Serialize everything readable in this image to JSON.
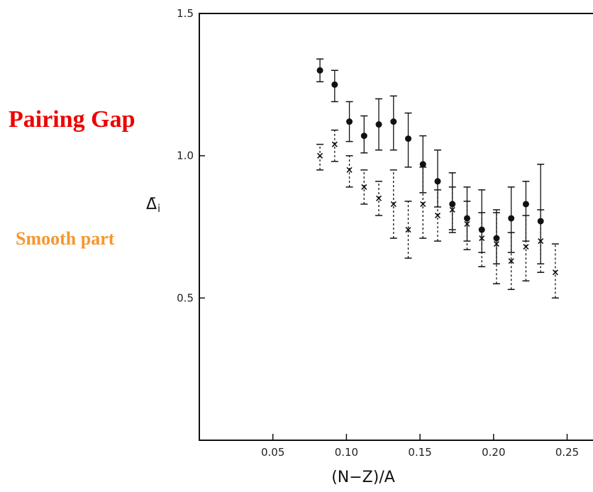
{
  "annotations": {
    "pairing_gap": {
      "text": "Pairing Gap",
      "color": "#ee0000"
    },
    "smooth_part": {
      "text": "Smooth part",
      "color": "#f7962d"
    }
  },
  "chart_data": {
    "type": "scatter",
    "xlabel": "(N−Z)/A",
    "ylabel": "Δ̄",
    "ylabel_subscript": "i",
    "xlim": [
      0.0,
      0.27
    ],
    "ylim": [
      0.0,
      1.5
    ],
    "x_ticks": [
      {
        "value": 0.05,
        "label": "0.05"
      },
      {
        "value": 0.1,
        "label": "0.10"
      },
      {
        "value": 0.15,
        "label": "0.15"
      },
      {
        "value": 0.2,
        "label": "0.20"
      },
      {
        "value": 0.25,
        "label": "0.25"
      }
    ],
    "y_ticks": [
      {
        "value": 0.5,
        "label": "0.5"
      },
      {
        "value": 1.0,
        "label": "1.0"
      },
      {
        "value": 1.5,
        "label": "1.5"
      }
    ],
    "grid": false,
    "series": [
      {
        "marker": "filled-circle",
        "errorbar": "solid",
        "points": [
          {
            "x": 0.082,
            "y": 1.3,
            "ylo": 1.26,
            "yhi": 1.34
          },
          {
            "x": 0.092,
            "y": 1.25,
            "ylo": 1.19,
            "yhi": 1.3
          },
          {
            "x": 0.102,
            "y": 1.12,
            "ylo": 1.05,
            "yhi": 1.19
          },
          {
            "x": 0.112,
            "y": 1.07,
            "ylo": 1.01,
            "yhi": 1.14
          },
          {
            "x": 0.122,
            "y": 1.11,
            "ylo": 1.02,
            "yhi": 1.2
          },
          {
            "x": 0.132,
            "y": 1.12,
            "ylo": 1.02,
            "yhi": 1.21
          },
          {
            "x": 0.142,
            "y": 1.06,
            "ylo": 0.96,
            "yhi": 1.15
          },
          {
            "x": 0.152,
            "y": 0.97,
            "ylo": 0.87,
            "yhi": 1.07
          },
          {
            "x": 0.162,
            "y": 0.91,
            "ylo": 0.82,
            "yhi": 1.02
          },
          {
            "x": 0.172,
            "y": 0.83,
            "ylo": 0.74,
            "yhi": 0.94
          },
          {
            "x": 0.182,
            "y": 0.78,
            "ylo": 0.7,
            "yhi": 0.89
          },
          {
            "x": 0.192,
            "y": 0.74,
            "ylo": 0.66,
            "yhi": 0.88
          },
          {
            "x": 0.202,
            "y": 0.71,
            "ylo": 0.62,
            "yhi": 0.81
          },
          {
            "x": 0.212,
            "y": 0.78,
            "ylo": 0.66,
            "yhi": 0.89
          },
          {
            "x": 0.222,
            "y": 0.83,
            "ylo": 0.7,
            "yhi": 0.91
          },
          {
            "x": 0.232,
            "y": 0.77,
            "ylo": 0.62,
            "yhi": 0.97
          }
        ]
      },
      {
        "marker": "cross",
        "errorbar": "dashed",
        "points": [
          {
            "x": 0.082,
            "y": 1.0,
            "ylo": 0.95,
            "yhi": 1.04
          },
          {
            "x": 0.092,
            "y": 1.04,
            "ylo": 0.98,
            "yhi": 1.09
          },
          {
            "x": 0.102,
            "y": 0.95,
            "ylo": 0.89,
            "yhi": 1.0
          },
          {
            "x": 0.112,
            "y": 0.89,
            "ylo": 0.83,
            "yhi": 0.95
          },
          {
            "x": 0.122,
            "y": 0.85,
            "ylo": 0.79,
            "yhi": 0.91
          },
          {
            "x": 0.132,
            "y": 0.83,
            "ylo": 0.71,
            "yhi": 0.95
          },
          {
            "x": 0.142,
            "y": 0.74,
            "ylo": 0.64,
            "yhi": 0.84
          },
          {
            "x": 0.152,
            "y": 0.83,
            "ylo": 0.71,
            "yhi": 0.96
          },
          {
            "x": 0.162,
            "y": 0.79,
            "ylo": 0.7,
            "yhi": 0.88
          },
          {
            "x": 0.172,
            "y": 0.81,
            "ylo": 0.73,
            "yhi": 0.89
          },
          {
            "x": 0.182,
            "y": 0.76,
            "ylo": 0.67,
            "yhi": 0.84
          },
          {
            "x": 0.192,
            "y": 0.71,
            "ylo": 0.61,
            "yhi": 0.8
          },
          {
            "x": 0.202,
            "y": 0.69,
            "ylo": 0.55,
            "yhi": 0.8
          },
          {
            "x": 0.212,
            "y": 0.63,
            "ylo": 0.53,
            "yhi": 0.73
          },
          {
            "x": 0.222,
            "y": 0.68,
            "ylo": 0.56,
            "yhi": 0.79
          },
          {
            "x": 0.232,
            "y": 0.7,
            "ylo": 0.59,
            "yhi": 0.81
          },
          {
            "x": 0.242,
            "y": 0.59,
            "ylo": 0.5,
            "yhi": 0.69
          }
        ]
      }
    ]
  }
}
